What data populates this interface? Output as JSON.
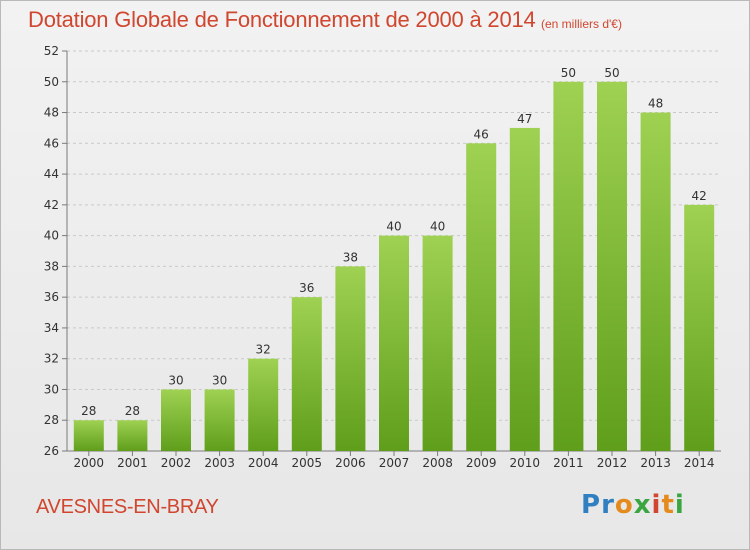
{
  "header": {
    "title": "Dotation Globale de Fonctionnement de 2000 à 2014",
    "subtitle": "(en milliers d'€)"
  },
  "footer": {
    "commune": "AVESNES-EN-BRAY",
    "logo": {
      "text": "Proxiti",
      "letters": [
        {
          "ch": "P",
          "color": "#2f7fc1"
        },
        {
          "ch": "r",
          "color": "#2f7fc1"
        },
        {
          "ch": "o",
          "color": "#e58b1e"
        },
        {
          "ch": "x",
          "color": "#3aa641"
        },
        {
          "ch": "i",
          "color": "#d0462f"
        },
        {
          "ch": "t",
          "color": "#e58b1e"
        },
        {
          "ch": "i",
          "color": "#3aa641"
        }
      ]
    }
  },
  "colors": {
    "accent": "#d0462f",
    "bar_top": "#9fd152",
    "bar_bottom": "#5f9e1b",
    "grid": "#c9c9c9",
    "axis": "#7a7a7a",
    "text": "#333333"
  },
  "chart_data": {
    "type": "bar",
    "categories": [
      "2000",
      "2001",
      "2002",
      "2003",
      "2004",
      "2005",
      "2006",
      "2007",
      "2008",
      "2009",
      "2010",
      "2011",
      "2012",
      "2013",
      "2014"
    ],
    "values": [
      28,
      28,
      30,
      30,
      32,
      36,
      38,
      40,
      40,
      46,
      47,
      50,
      50,
      48,
      42
    ],
    "title": "Dotation Globale de Fonctionnement de 2000 à 2014",
    "subtitle": "(en milliers d'€)",
    "ylim": [
      26,
      52
    ],
    "yticks": [
      26,
      28,
      30,
      32,
      34,
      36,
      38,
      40,
      42,
      44,
      46,
      48,
      50,
      52
    ],
    "grid": true,
    "data_labels": true
  }
}
